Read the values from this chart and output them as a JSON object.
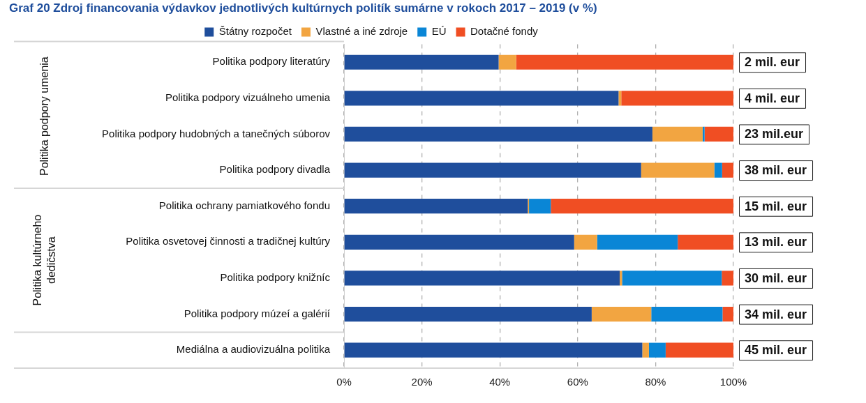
{
  "chart_data": {
    "type": "bar",
    "orientation": "horizontal",
    "stacked": true,
    "title": "Graf 20 Zdroj financovania výdavkov jednotlivých kultúrnych politík sumárne v rokoch 2017 – 2019 (v %)",
    "categories": [
      "Politika podpory literatúry",
      "Politika podpory vizuálneho umenia",
      "Politika podpory hudobných a tanečných súborov",
      "Politika podpory divadla",
      "Politika ochrany pamiatkového fondu",
      "Politika osvetovej činnosti a tradičnej kultúry",
      "Politika podpory knižníc",
      "Politika podpory múzeí a galérií",
      "Mediálna a audiovizuálna politika"
    ],
    "series": [
      {
        "name": "Štátny rozpočet",
        "color": "#1f4e9c",
        "values": [
          39.7,
          70.5,
          79.2,
          76.3,
          47.2,
          59.1,
          70.8,
          63.6,
          76.6
        ]
      },
      {
        "name": "Vlastné a iné zdroje",
        "color": "#f2a541",
        "values": [
          4.5,
          0.7,
          12.9,
          18.8,
          0.3,
          5.9,
          0.6,
          15.3,
          1.7
        ]
      },
      {
        "name": "EÚ",
        "color": "#0a86d6",
        "values": [
          0,
          0,
          0.5,
          2.0,
          5.6,
          20.7,
          25.6,
          18.3,
          4.3
        ]
      },
      {
        "name": "Dotačné fondy",
        "color": "#f04e23",
        "values": [
          55.8,
          28.8,
          7.4,
          2.9,
          46.9,
          14.3,
          3.0,
          2.8,
          17.4
        ]
      }
    ],
    "xlim": [
      0,
      100
    ],
    "xticks": [
      {
        "value": 0,
        "label": "0%"
      },
      {
        "value": 20,
        "label": "20%"
      },
      {
        "value": 40,
        "label": "40%"
      },
      {
        "value": 60,
        "label": "60%"
      },
      {
        "value": 80,
        "label": "80%"
      },
      {
        "value": 100,
        "label": "100%"
      }
    ],
    "grid": "x",
    "legend": "top",
    "annotations": [
      "Politika podpory umenia",
      "Politika kultúrneho dedičstva",
      "2 mil. eur",
      "4 mil. eur",
      "23 mil.eur",
      "38 mil. eur",
      "15 mil. eur",
      "13 mil. eur",
      "30 mil. eur",
      "34 mil. eur",
      "45 mil. eur"
    ]
  }
}
